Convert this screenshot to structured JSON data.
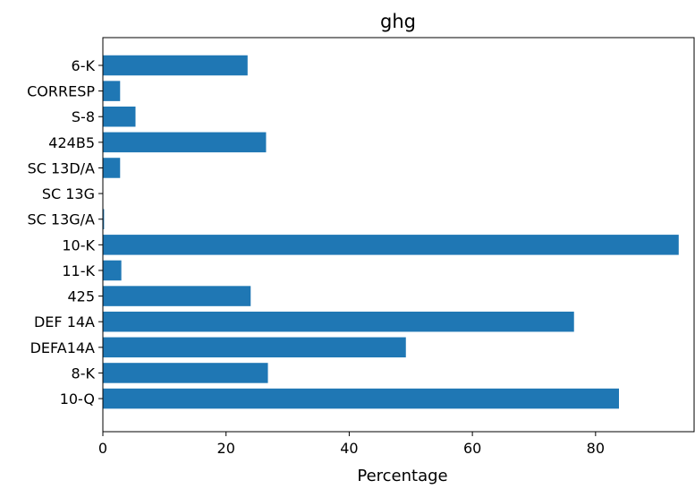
{
  "chart_data": {
    "type": "bar",
    "orientation": "horizontal",
    "title": "ghg",
    "xlabel": "Percentage",
    "ylabel": "",
    "categories": [
      "6-K",
      "CORRESP",
      "S-8",
      "424B5",
      "SC 13D/A",
      "SC 13G",
      "SC 13G/A",
      "10-K",
      "11-K",
      "425",
      "DEF 14A",
      "DEFA14A",
      "8-K",
      "10-Q"
    ],
    "values": [
      23.5,
      2.8,
      5.3,
      26.5,
      2.8,
      0.0,
      0.2,
      93.5,
      3.0,
      24.0,
      76.5,
      49.2,
      26.8,
      83.8
    ],
    "xlim": [
      0,
      96
    ],
    "xticks": [
      0,
      20,
      40,
      60,
      80
    ],
    "bar_color": "#1f77b4",
    "grid": false,
    "legend": "none"
  }
}
